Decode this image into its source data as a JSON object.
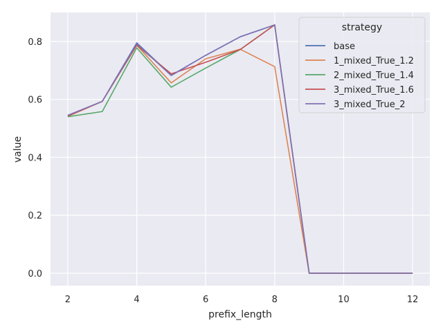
{
  "chart_data": {
    "type": "line",
    "xlabel": "prefix_length",
    "ylabel": "value",
    "xlim": [
      1.5,
      12.5
    ],
    "ylim": [
      -0.043,
      0.9
    ],
    "xticks": [
      2,
      4,
      6,
      8,
      10,
      12
    ],
    "yticks": [
      0.0,
      0.2,
      0.4,
      0.6,
      0.8
    ],
    "xtick_labels": [
      "2",
      "4",
      "6",
      "8",
      "10",
      "12"
    ],
    "ytick_labels": [
      "0.0",
      "0.2",
      "0.4",
      "0.6",
      "0.8"
    ],
    "grid": true,
    "legend": {
      "title": "strategy",
      "placement": "top-right"
    },
    "x": [
      2,
      3,
      4,
      5,
      6,
      7,
      8,
      9,
      10,
      11,
      12
    ],
    "series": [
      {
        "name": "base",
        "color": "#4c72b0",
        "values": [
          0.545,
          0.593,
          0.795,
          0.683,
          0.752,
          0.816,
          0.857,
          0.0,
          0.0,
          0.0,
          0.0
        ]
      },
      {
        "name": "1_mixed_True_1.2",
        "color": "#dd8452",
        "values": [
          0.541,
          0.593,
          0.787,
          0.657,
          0.74,
          0.773,
          0.713,
          0.0,
          0.0,
          0.0,
          0.0
        ]
      },
      {
        "name": "2_mixed_True_1.4",
        "color": "#55a868",
        "values": [
          0.54,
          0.558,
          0.778,
          0.642,
          0.708,
          0.772,
          0.857,
          0.0,
          0.0,
          0.0,
          0.0
        ]
      },
      {
        "name": "3_mixed_True_1.6",
        "color": "#c44e52",
        "values": [
          0.543,
          0.593,
          0.787,
          0.688,
          0.728,
          0.772,
          0.857,
          0.0,
          0.0,
          0.0,
          0.0
        ]
      },
      {
        "name": "3_mixed_True_2",
        "color": "#8172b3",
        "values": [
          0.545,
          0.593,
          0.792,
          0.682,
          0.752,
          0.816,
          0.857,
          0.0,
          0.0,
          0.0,
          0.0
        ]
      }
    ]
  }
}
